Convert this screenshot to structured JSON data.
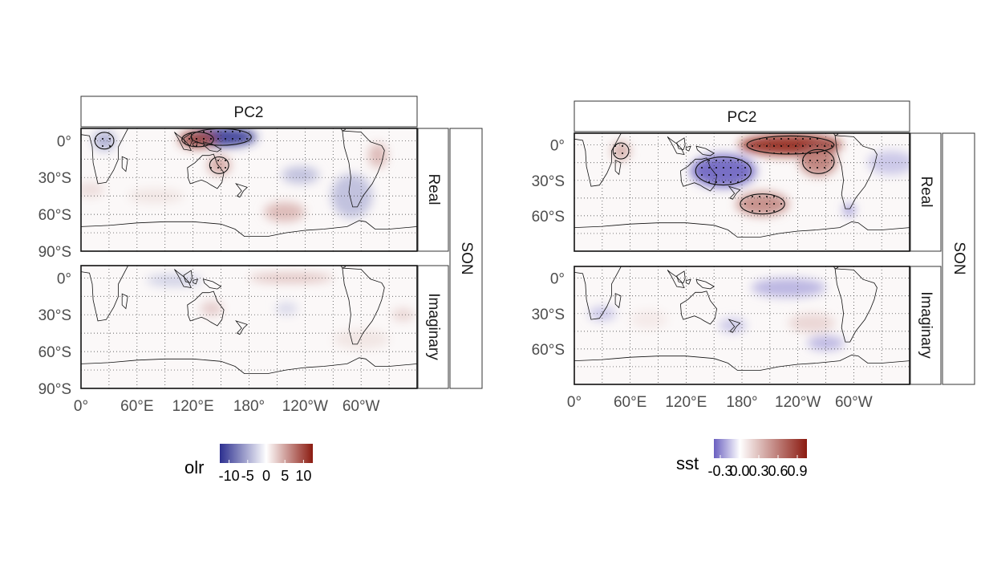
{
  "chart_data": [
    {
      "type": "heatmap",
      "facet_title": "PC2",
      "row_labels": [
        "Real",
        "Imaginary"
      ],
      "season_label": "SON",
      "x_ticks": [
        "0°",
        "60°E",
        "120°E",
        "180°",
        "120°W",
        "60°W"
      ],
      "x_tick_lon": [
        0,
        60,
        120,
        180,
        240,
        300
      ],
      "xlim": [
        0,
        360
      ],
      "y_ticks": [
        "0°",
        "30°S",
        "60°S",
        "90°S"
      ],
      "y_tick_lat": [
        0,
        -30,
        -60,
        -90
      ],
      "ylim": [
        -90,
        10
      ],
      "legend": {
        "title": "olr",
        "ticks": [
          "-10",
          "-5",
          "0",
          "5",
          "10"
        ],
        "tick_values": [
          -10,
          -5,
          0,
          5,
          10
        ],
        "range": [
          -12.5,
          12.5
        ],
        "colors": [
          "#2c2f8f",
          "#ffffff",
          "#8b1a10"
        ]
      },
      "panels": [
        {
          "name": "Real",
          "features": [
            {
              "lon": 150,
              "lat": 3,
              "value": -12,
              "rx": 38,
              "ry": 8
            },
            {
              "lon": 125,
              "lat": 1,
              "value": 10,
              "rx": 20,
              "ry": 7
            },
            {
              "lon": 148,
              "lat": -20,
              "value": 5,
              "rx": 12,
              "ry": 8
            },
            {
              "lon": 25,
              "lat": 0,
              "value": -5,
              "rx": 12,
              "ry": 8
            },
            {
              "lon": 235,
              "lat": -28,
              "value": -4,
              "rx": 20,
              "ry": 7
            },
            {
              "lon": 290,
              "lat": -45,
              "value": -4,
              "rx": 22,
              "ry": 18
            },
            {
              "lon": 218,
              "lat": -58,
              "value": 4,
              "rx": 22,
              "ry": 8
            },
            {
              "lon": 318,
              "lat": -12,
              "value": 4,
              "rx": 10,
              "ry": 10
            },
            {
              "lon": 10,
              "lat": -40,
              "value": 2,
              "rx": 15,
              "ry": 6
            },
            {
              "lon": 80,
              "lat": -45,
              "value": 1.5,
              "rx": 30,
              "ry": 6
            }
          ]
        },
        {
          "name": "Imaginary",
          "features": [
            {
              "lon": 225,
              "lat": 0,
              "value": 3.5,
              "rx": 45,
              "ry": 4
            },
            {
              "lon": 100,
              "lat": -2,
              "value": -3,
              "rx": 30,
              "ry": 5
            },
            {
              "lon": 140,
              "lat": -25,
              "value": 3,
              "rx": 12,
              "ry": 6
            },
            {
              "lon": 220,
              "lat": -25,
              "value": -2.5,
              "rx": 12,
              "ry": 5
            },
            {
              "lon": 345,
              "lat": -30,
              "value": 2.5,
              "rx": 12,
              "ry": 5
            },
            {
              "lon": 300,
              "lat": -50,
              "value": 1.5,
              "rx": 30,
              "ry": 8
            }
          ]
        }
      ]
    },
    {
      "type": "heatmap",
      "facet_title": "PC2",
      "row_labels": [
        "Real",
        "Imaginary"
      ],
      "season_label": "SON",
      "x_ticks": [
        "0°",
        "60°E",
        "120°E",
        "180°",
        "120°W",
        "60°W"
      ],
      "x_tick_lon": [
        0,
        60,
        120,
        180,
        240,
        300
      ],
      "xlim": [
        0,
        360
      ],
      "y_ticks": [
        "0°",
        "30°S",
        "60°S"
      ],
      "y_tick_lat": [
        0,
        -30,
        -60
      ],
      "ylim": [
        -90,
        10
      ],
      "legend": {
        "title": "sst",
        "ticks": [
          "-0.3",
          "0.0",
          "0.3",
          "0.6",
          "0.9"
        ],
        "tick_values": [
          -0.3,
          0.0,
          0.3,
          0.6,
          0.9
        ],
        "range": [
          -0.4,
          1.05
        ],
        "colors": [
          "#6a5fc0",
          "#ffffff",
          "#8b1a10"
        ]
      },
      "panels": [
        {
          "name": "Real",
          "features": [
            {
              "lon": 232,
              "lat": 0,
              "value": 1.0,
              "rx": 55,
              "ry": 9
            },
            {
              "lon": 262,
              "lat": -14,
              "value": 0.6,
              "rx": 20,
              "ry": 12
            },
            {
              "lon": 160,
              "lat": -22,
              "value": -0.45,
              "rx": 35,
              "ry": 14
            },
            {
              "lon": 202,
              "lat": -50,
              "value": 0.55,
              "rx": 28,
              "ry": 10
            },
            {
              "lon": 50,
              "lat": -5,
              "value": 0.4,
              "rx": 10,
              "ry": 8
            },
            {
              "lon": 340,
              "lat": -15,
              "value": -0.15,
              "rx": 25,
              "ry": 10
            },
            {
              "lon": 295,
              "lat": -55,
              "value": -0.3,
              "rx": 6,
              "ry": 5
            }
          ]
        },
        {
          "name": "Imaginary",
          "features": [
            {
              "lon": 230,
              "lat": -8,
              "value": -0.2,
              "rx": 40,
              "ry": 8
            },
            {
              "lon": 255,
              "lat": -38,
              "value": 0.2,
              "rx": 25,
              "ry": 8
            },
            {
              "lon": 270,
              "lat": -55,
              "value": -0.2,
              "rx": 20,
              "ry": 6
            },
            {
              "lon": 170,
              "lat": -40,
              "value": -0.15,
              "rx": 15,
              "ry": 6
            },
            {
              "lon": 80,
              "lat": -35,
              "value": 0.1,
              "rx": 20,
              "ry": 8
            },
            {
              "lon": 30,
              "lat": -30,
              "value": -0.15,
              "rx": 15,
              "ry": 6
            }
          ]
        }
      ]
    }
  ]
}
